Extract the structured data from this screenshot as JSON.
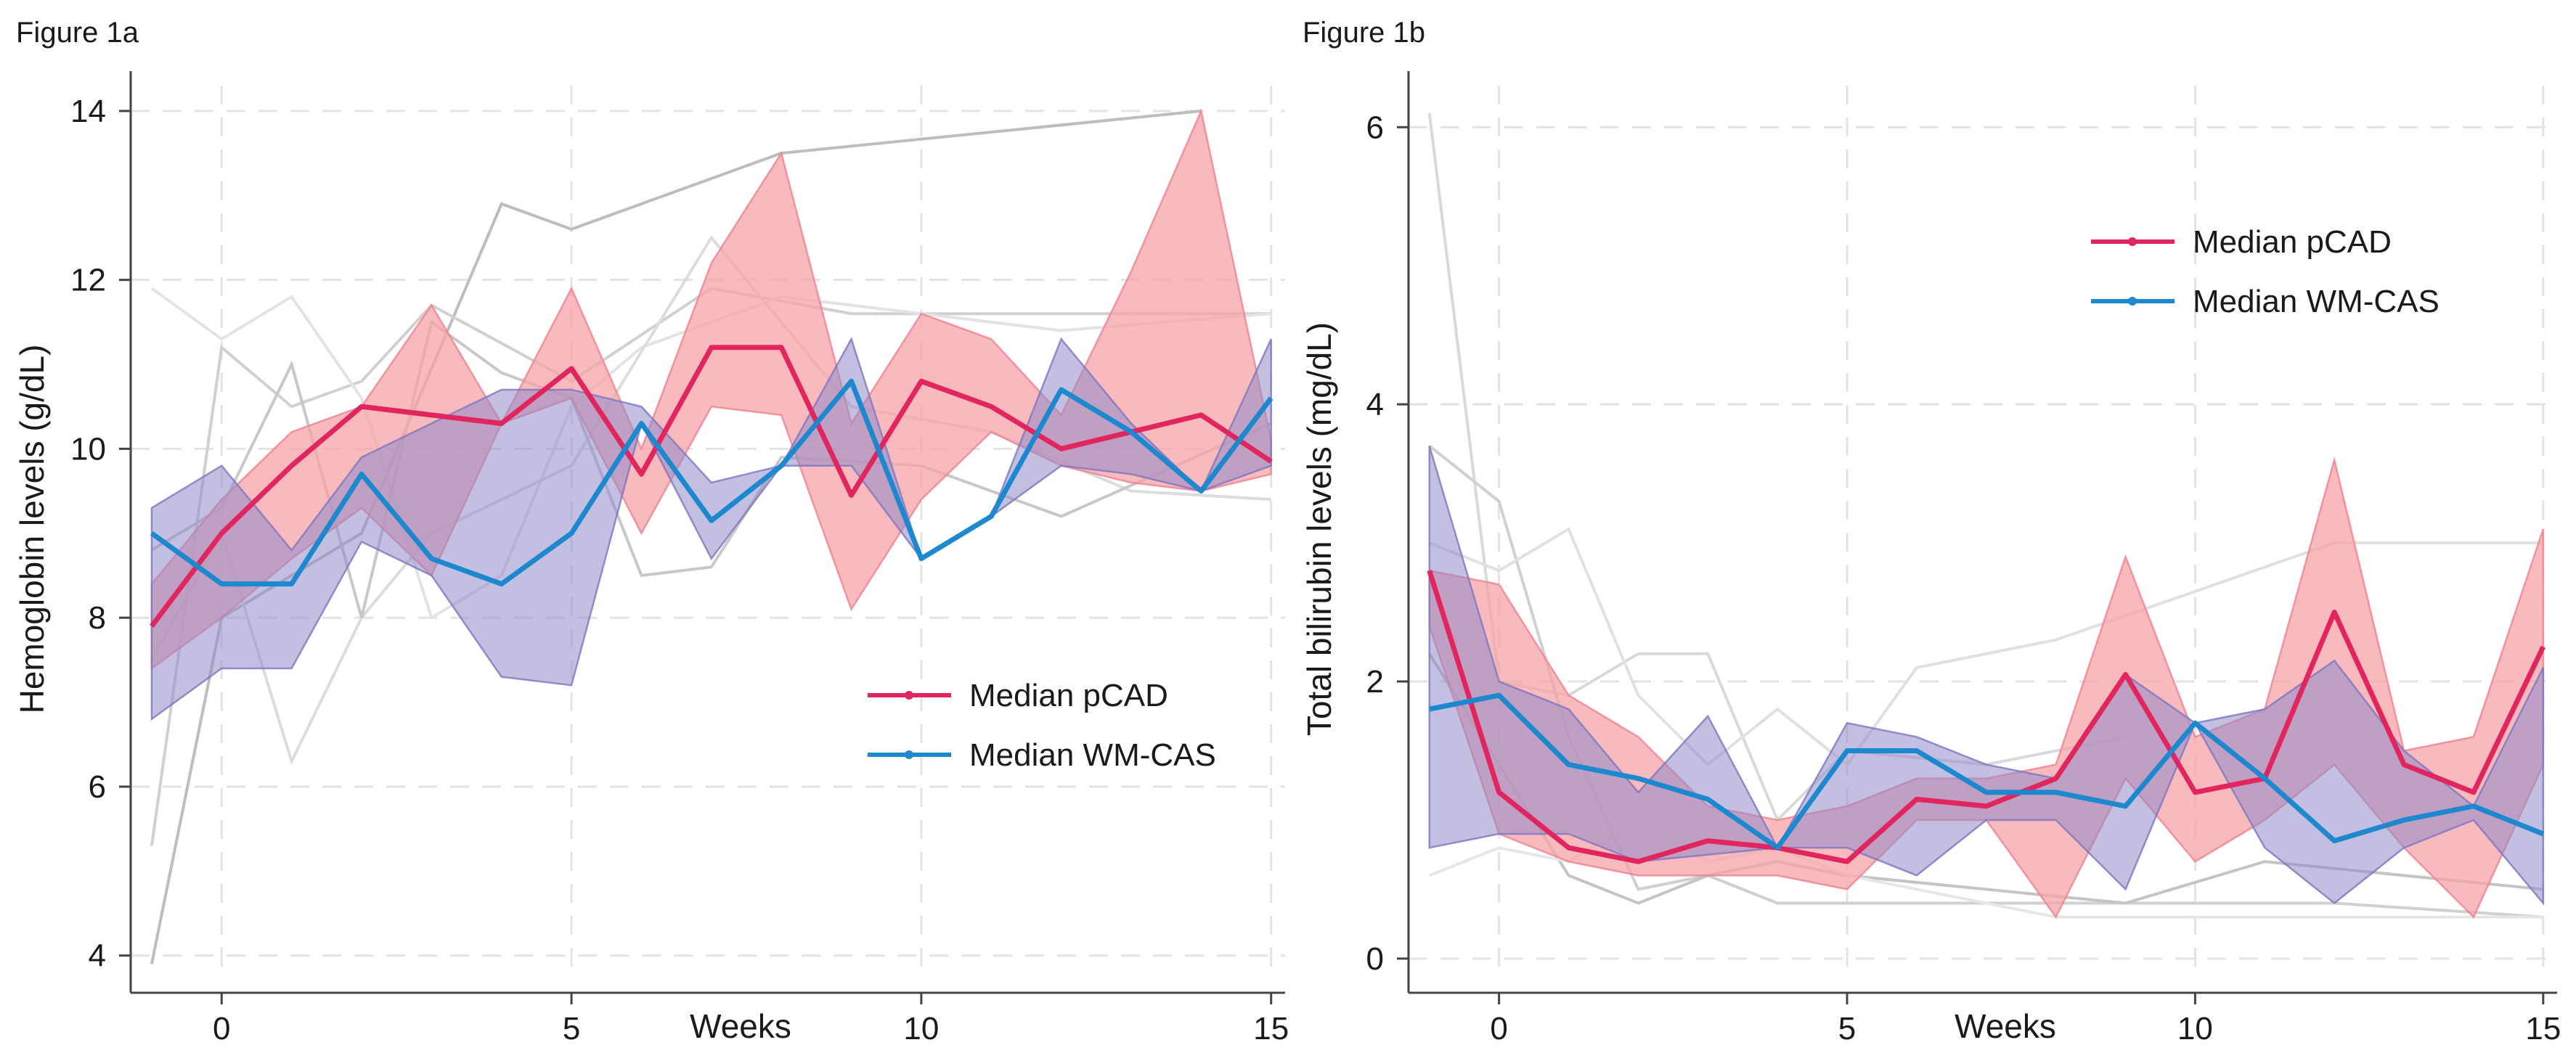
{
  "colors": {
    "pcad": "#e0255f",
    "pcad_band": "#f7a3a8",
    "pcad_band_edge": "#f08090",
    "wmcas": "#1e88cf",
    "wmcas_band": "#8f8bc8",
    "wmcas_band_edge": "#7a75c0"
  },
  "chart_data": [
    {
      "id": "a",
      "type": "line",
      "panel_title": "Figure 1a",
      "xlabel": "Weeks",
      "ylabel": "Hemoglobin levels (g/dL)",
      "xlim": [
        -1.3,
        15.2
      ],
      "ylim": [
        3.8,
        14.3
      ],
      "xticks": [
        0,
        5,
        10,
        15
      ],
      "yticks": [
        4,
        6,
        8,
        10,
        12,
        14
      ],
      "legend": {
        "position": "lower-right",
        "entries": [
          "Median pCAD",
          "Median WM-CAS"
        ]
      },
      "individual_lines": [
        {
          "x": [
            -1,
            0,
            2,
            4,
            5,
            8,
            14
          ],
          "y": [
            3.9,
            8.0,
            9.0,
            12.9,
            12.6,
            13.5,
            14.0
          ],
          "shade": "#bdbdbd"
        },
        {
          "x": [
            -1,
            0,
            1,
            2,
            3,
            5,
            7,
            9,
            15
          ],
          "y": [
            5.3,
            11.2,
            10.5,
            10.8,
            11.7,
            10.8,
            11.9,
            11.6,
            11.6
          ],
          "shade": "#d0d0d0"
        },
        {
          "x": [
            -1,
            0,
            1,
            2,
            3,
            4,
            5,
            6,
            8,
            12,
            15
          ],
          "y": [
            11.9,
            11.3,
            11.8,
            10.6,
            8.0,
            8.5,
            10.5,
            11.2,
            11.8,
            11.4,
            11.6
          ],
          "shade": "#e3e3e3"
        },
        {
          "x": [
            -1,
            0,
            1,
            2,
            3,
            5,
            7,
            9,
            11,
            13,
            15
          ],
          "y": [
            7.5,
            9.0,
            6.3,
            8.0,
            9.0,
            9.8,
            12.5,
            10.5,
            10.2,
            9.5,
            9.4
          ],
          "shade": "#dcdcdc"
        },
        {
          "x": [
            -1,
            0,
            1,
            2,
            3,
            4,
            5,
            6,
            7,
            8,
            10,
            12,
            15
          ],
          "y": [
            8.8,
            9.3,
            11.0,
            8.0,
            11.5,
            10.9,
            10.6,
            8.5,
            8.6,
            9.9,
            9.8,
            9.2,
            10.3
          ],
          "shade": "#c8c8c8"
        }
      ],
      "series": [
        {
          "name": "Median pCAD",
          "x": [
            -1,
            0,
            1,
            2,
            3,
            4,
            5,
            6,
            7,
            8,
            9,
            10,
            11,
            12,
            13,
            14,
            15
          ],
          "median": [
            7.9,
            9.0,
            9.8,
            10.5,
            10.4,
            10.3,
            10.95,
            9.7,
            11.2,
            11.2,
            9.45,
            10.8,
            10.5,
            10.0,
            10.2,
            10.4,
            9.85
          ],
          "lower": [
            7.4,
            8.0,
            8.7,
            9.3,
            8.5,
            10.3,
            10.6,
            9.0,
            10.5,
            10.4,
            8.1,
            9.4,
            10.2,
            9.8,
            9.6,
            9.5,
            9.7
          ],
          "upper": [
            8.4,
            9.4,
            10.2,
            10.5,
            11.7,
            10.3,
            11.9,
            10.0,
            12.2,
            13.5,
            10.3,
            11.6,
            11.3,
            10.4,
            12.1,
            14.0,
            10.1
          ]
        },
        {
          "name": "Median WM-CAS",
          "x": [
            -1,
            0,
            1,
            2,
            3,
            4,
            5,
            6,
            7,
            8,
            9,
            10,
            11,
            12,
            13,
            14,
            15
          ],
          "median": [
            9.0,
            8.4,
            8.4,
            9.7,
            8.7,
            8.4,
            9.0,
            10.3,
            9.15,
            9.8,
            10.8,
            8.7,
            9.2,
            10.7,
            10.2,
            9.5,
            10.6
          ],
          "lower": [
            6.8,
            7.4,
            7.4,
            8.9,
            8.5,
            7.3,
            7.2,
            10.3,
            8.7,
            9.8,
            9.8,
            8.7,
            9.2,
            9.8,
            9.7,
            9.5,
            9.8
          ],
          "upper": [
            9.3,
            9.8,
            8.8,
            9.9,
            10.3,
            10.7,
            10.7,
            10.5,
            9.6,
            9.8,
            11.3,
            8.7,
            9.2,
            11.3,
            10.3,
            9.5,
            11.3
          ]
        }
      ]
    },
    {
      "id": "b",
      "type": "line",
      "panel_title": "Figure 1b",
      "xlabel": "Weeks",
      "ylabel": "Total bilirubin levels (mg/dL)",
      "xlim": [
        -1.3,
        15.2
      ],
      "ylim": [
        -0.1,
        6.3
      ],
      "xticks": [
        0,
        5,
        10,
        15
      ],
      "yticks": [
        0,
        2,
        4,
        6
      ],
      "legend": {
        "position": "top-right",
        "entries": [
          "Median pCAD",
          "Median WM-CAS"
        ]
      },
      "individual_lines": [
        {
          "x": [
            -1,
            0,
            1,
            2,
            3,
            4,
            5,
            7,
            9
          ],
          "y": [
            6.1,
            2.0,
            1.9,
            2.2,
            2.2,
            1.0,
            1.5,
            1.4,
            1.6
          ],
          "shade": "#d9d9d9"
        },
        {
          "x": [
            -1,
            0,
            1,
            2,
            3,
            4,
            5,
            7,
            12,
            15
          ],
          "y": [
            3.7,
            3.3,
            1.6,
            0.5,
            0.6,
            0.4,
            0.4,
            0.4,
            0.4,
            0.3
          ],
          "shade": "#d0d0d0"
        },
        {
          "x": [
            -1,
            0,
            1,
            2,
            3,
            4,
            5,
            6,
            8,
            12,
            15
          ],
          "y": [
            3.0,
            2.8,
            3.1,
            1.9,
            1.4,
            1.8,
            1.4,
            2.1,
            2.3,
            3.0,
            3.0
          ],
          "shade": "#e0e0e0"
        },
        {
          "x": [
            -1,
            0,
            1,
            2,
            3,
            4,
            5,
            7,
            9,
            11,
            13,
            15
          ],
          "y": [
            2.2,
            1.4,
            0.6,
            0.4,
            0.6,
            0.7,
            0.6,
            0.5,
            0.4,
            0.7,
            0.6,
            0.5
          ],
          "shade": "#c4c4c4"
        },
        {
          "x": [
            -1,
            0,
            1,
            2,
            3,
            4,
            5,
            8,
            11,
            15
          ],
          "y": [
            0.6,
            0.8,
            0.7,
            1.0,
            0.7,
            0.8,
            0.6,
            0.3,
            0.3,
            0.3
          ],
          "shade": "#e6e6e6"
        }
      ],
      "series": [
        {
          "name": "Median pCAD",
          "x": [
            -1,
            0,
            1,
            2,
            3,
            4,
            5,
            6,
            7,
            8,
            9,
            10,
            11,
            12,
            13,
            14,
            15
          ],
          "median": [
            2.8,
            1.2,
            0.8,
            0.7,
            0.85,
            0.8,
            0.7,
            1.15,
            1.1,
            1.3,
            2.05,
            1.2,
            1.3,
            2.5,
            1.4,
            1.2,
            2.25
          ],
          "lower": [
            2.4,
            0.9,
            0.7,
            0.6,
            0.6,
            0.6,
            0.5,
            1.0,
            1.0,
            0.3,
            1.3,
            0.7,
            1.0,
            1.4,
            0.8,
            0.3,
            1.4
          ],
          "upper": [
            2.8,
            2.7,
            1.9,
            1.6,
            1.1,
            1.0,
            1.1,
            1.3,
            1.3,
            1.4,
            2.9,
            1.6,
            1.8,
            3.6,
            1.5,
            1.6,
            3.1
          ]
        },
        {
          "name": "Median WM-CAS",
          "x": [
            -1,
            0,
            1,
            2,
            3,
            4,
            5,
            6,
            7,
            8,
            9,
            10,
            11,
            12,
            13,
            14,
            15
          ],
          "median": [
            1.8,
            1.9,
            1.4,
            1.3,
            1.15,
            0.8,
            1.5,
            1.5,
            1.2,
            1.2,
            1.1,
            1.7,
            1.3,
            0.85,
            1.0,
            1.1,
            0.9
          ],
          "lower": [
            0.8,
            0.9,
            0.9,
            0.7,
            0.75,
            0.8,
            0.8,
            0.6,
            1.0,
            1.0,
            0.5,
            1.7,
            0.8,
            0.4,
            0.8,
            1.0,
            0.4
          ],
          "upper": [
            3.7,
            2.0,
            1.8,
            1.2,
            1.75,
            0.8,
            1.7,
            1.6,
            1.4,
            1.3,
            2.05,
            1.7,
            1.8,
            2.15,
            1.5,
            1.1,
            2.1
          ]
        }
      ]
    }
  ]
}
